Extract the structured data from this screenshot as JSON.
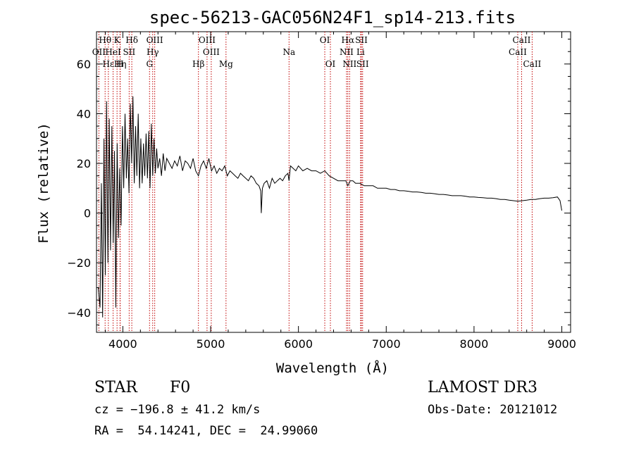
{
  "chart_data": {
    "type": "line",
    "title": "spec-56213-GAC056N24F1_sp14-213.fits",
    "xlabel": "Wavelength (Å)",
    "ylabel": "Flux (relative)",
    "xlim": [
      3700,
      9100
    ],
    "ylim": [
      -48,
      73
    ],
    "xticks": [
      4000,
      5000,
      6000,
      7000,
      8000,
      9000
    ],
    "xtick_labels": [
      "4000",
      "5000",
      "6000",
      "7000",
      "8000",
      "9000"
    ],
    "yticks": [
      -40,
      -20,
      0,
      20,
      40,
      60
    ],
    "ytick_labels": [
      "−40",
      "−20",
      "0",
      "20",
      "40",
      "60"
    ],
    "line_color": "#000000",
    "marker_color": "#c00000",
    "series": [
      {
        "name": "flux",
        "x": [
          3720,
          3740,
          3755,
          3770,
          3785,
          3800,
          3815,
          3830,
          3845,
          3860,
          3875,
          3890,
          3905,
          3920,
          3935,
          3950,
          3965,
          3980,
          3995,
          4010,
          4025,
          4040,
          4055,
          4070,
          4085,
          4100,
          4115,
          4130,
          4145,
          4160,
          4175,
          4190,
          4205,
          4220,
          4235,
          4250,
          4265,
          4280,
          4295,
          4310,
          4325,
          4340,
          4355,
          4370,
          4385,
          4400,
          4420,
          4440,
          4460,
          4480,
          4500,
          4530,
          4560,
          4590,
          4620,
          4650,
          4680,
          4710,
          4740,
          4770,
          4800,
          4830,
          4861,
          4890,
          4920,
          4950,
          4980,
          5010,
          5040,
          5070,
          5100,
          5130,
          5160,
          5190,
          5220,
          5250,
          5280,
          5310,
          5340,
          5370,
          5400,
          5430,
          5460,
          5490,
          5520,
          5550,
          5570,
          5577,
          5590,
          5610,
          5640,
          5670,
          5700,
          5730,
          5760,
          5790,
          5820,
          5850,
          5880,
          5893,
          5910,
          5940,
          5970,
          6000,
          6050,
          6100,
          6150,
          6200,
          6250,
          6300,
          6350,
          6400,
          6450,
          6500,
          6540,
          6563,
          6590,
          6620,
          6650,
          6700,
          6750,
          6800,
          6850,
          6900,
          6950,
          7000,
          7050,
          7100,
          7150,
          7200,
          7250,
          7300,
          7350,
          7400,
          7450,
          7500,
          7550,
          7600,
          7650,
          7700,
          7750,
          7800,
          7850,
          7900,
          7950,
          8000,
          8050,
          8100,
          8150,
          8200,
          8250,
          8300,
          8350,
          8400,
          8450,
          8500,
          8550,
          8600,
          8650,
          8700,
          8750,
          8800,
          8850,
          8900,
          8950,
          8980,
          9000
        ],
        "y": [
          -30,
          -38,
          12,
          -42,
          30,
          -25,
          45,
          -20,
          38,
          -15,
          35,
          -12,
          25,
          -38,
          28,
          -10,
          18,
          -5,
          35,
          10,
          40,
          14,
          30,
          8,
          44,
          20,
          47,
          12,
          35,
          15,
          40,
          10,
          30,
          12,
          28,
          15,
          32,
          14,
          33,
          10,
          36,
          15,
          30,
          16,
          26,
          18,
          22,
          15,
          24,
          17,
          22,
          20,
          18,
          21,
          19,
          23,
          17,
          21,
          20,
          18,
          22,
          17,
          15,
          19,
          21,
          18,
          22,
          17,
          19,
          16,
          18,
          17,
          19,
          15,
          17,
          16,
          15,
          14,
          16,
          15,
          14,
          13,
          15,
          14,
          12,
          11,
          9,
          0,
          10,
          12,
          13,
          10,
          14,
          12,
          13,
          14,
          13,
          15,
          16,
          13,
          19,
          18,
          17,
          19,
          17,
          18,
          17,
          17,
          16,
          17,
          15,
          14,
          13,
          13,
          13,
          11,
          13,
          13,
          12,
          12,
          11,
          11,
          11,
          10,
          10,
          10,
          9.5,
          9.5,
          9,
          9,
          8.8,
          8.5,
          8.5,
          8.3,
          8,
          8,
          7.8,
          7.5,
          7.5,
          7.3,
          7,
          7,
          7,
          6.8,
          6.5,
          6.5,
          6.3,
          6.2,
          6,
          6,
          5.8,
          5.5,
          5.5,
          5.2,
          5,
          4.8,
          5,
          5.2,
          5.5,
          5.5,
          5.8,
          6,
          6,
          6.2,
          6.5,
          5,
          1
        ]
      }
    ],
    "lines": [
      {
        "label": "Hθ",
        "x": 3798,
        "row": 1
      },
      {
        "label": "K",
        "x": 3934,
        "row": 1
      },
      {
        "label": "Hδ",
        "x": 4102,
        "row": 1
      },
      {
        "label": "OIII",
        "x": 4363,
        "row": 1
      },
      {
        "label": "OIII",
        "x": 4959,
        "row": 1
      },
      {
        "label": "OI",
        "x": 6300,
        "row": 1
      },
      {
        "label": "Hα",
        "x": 6563,
        "row": 1
      },
      {
        "label": "SII",
        "x": 6717,
        "row": 1
      },
      {
        "label": "CaII",
        "x": 8542,
        "row": 1
      },
      {
        "label": "OII",
        "x": 3727,
        "row": 2
      },
      {
        "label": "HeI",
        "x": 3889,
        "row": 2
      },
      {
        "label": "SII",
        "x": 4072,
        "row": 2
      },
      {
        "label": "Hγ",
        "x": 4340,
        "row": 2
      },
      {
        "label": "OIII",
        "x": 5007,
        "row": 2
      },
      {
        "label": "Na",
        "x": 5893,
        "row": 2
      },
      {
        "label": "NII",
        "x": 6548,
        "row": 2
      },
      {
        "label": "Li",
        "x": 6708,
        "row": 2
      },
      {
        "label": "CaII",
        "x": 8498,
        "row": 2
      },
      {
        "label": "Hε",
        "x": 3835,
        "row": 3
      },
      {
        "label": "Hη",
        "x": 3970,
        "row": 3
      },
      {
        "label": "H",
        "x": 3968,
        "row": 3
      },
      {
        "label": "G",
        "x": 4304,
        "row": 3
      },
      {
        "label": "Hβ",
        "x": 4861,
        "row": 3
      },
      {
        "label": "Mg",
        "x": 5175,
        "row": 3
      },
      {
        "label": "OI",
        "x": 6364,
        "row": 3
      },
      {
        "label": "NII",
        "x": 6583,
        "row": 3
      },
      {
        "label": "SII",
        "x": 6731,
        "row": 3
      },
      {
        "label": "CaII",
        "x": 8662,
        "row": 3
      }
    ]
  },
  "info": {
    "object_class": "STAR",
    "subclass": "F0",
    "survey": "LAMOST DR3",
    "cz": "cz = −196.8 ± 41.2 km/s",
    "obs_date": "Obs-Date: 20121012",
    "coords": "RA =  54.14241, DEC =  24.99060"
  }
}
